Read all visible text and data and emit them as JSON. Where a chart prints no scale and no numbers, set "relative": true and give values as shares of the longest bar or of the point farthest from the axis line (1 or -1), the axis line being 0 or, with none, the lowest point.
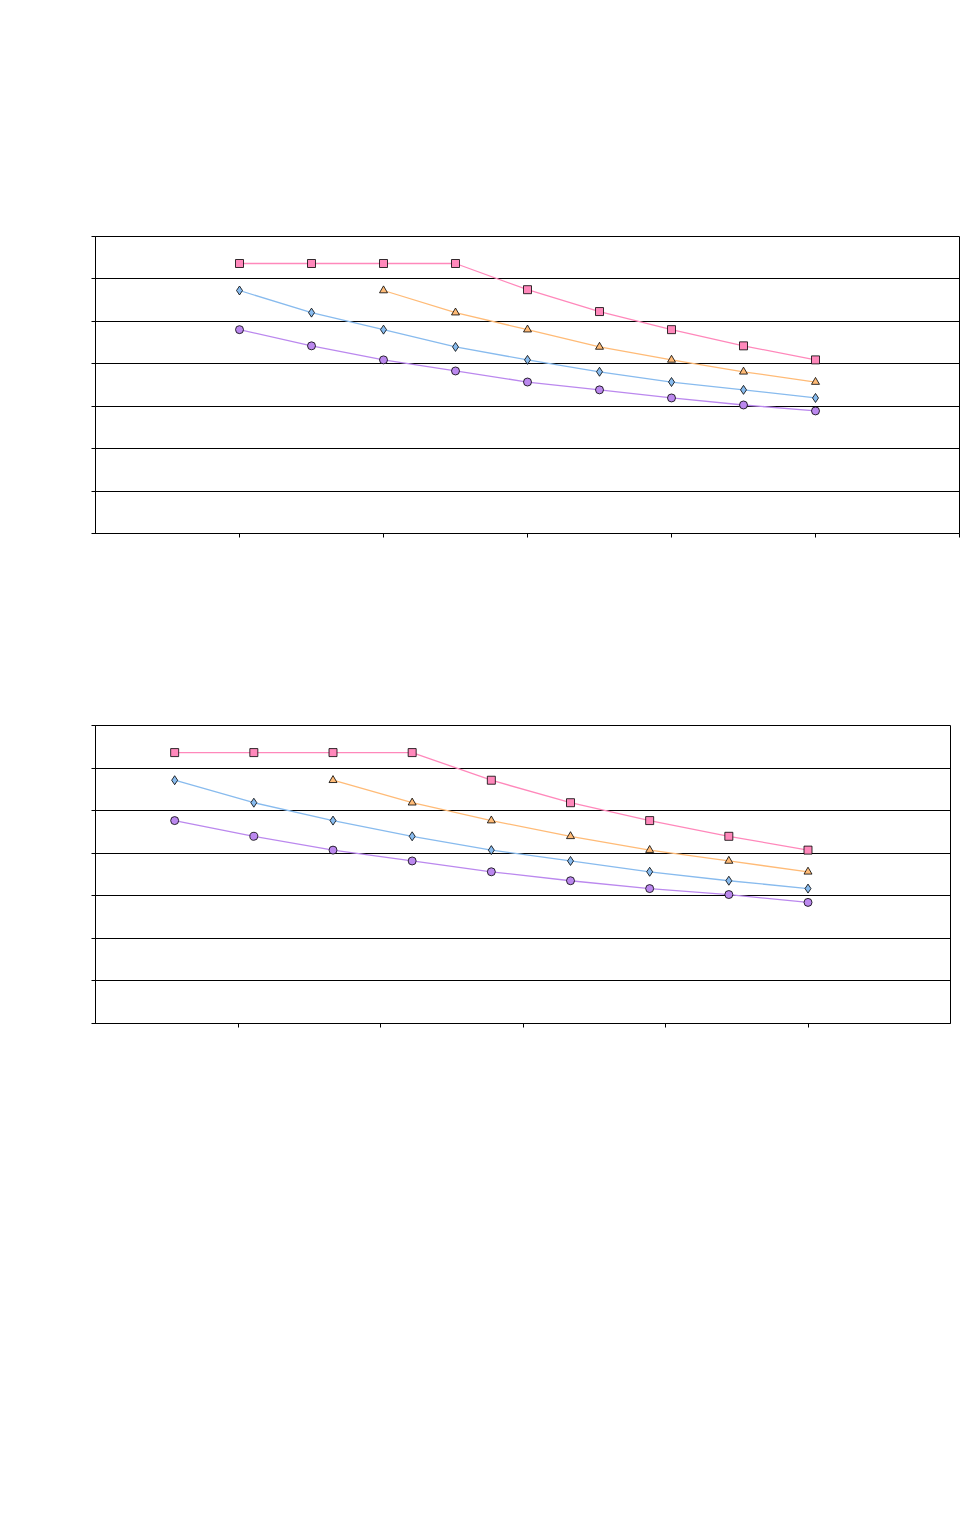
{
  "chart_data": [
    {
      "type": "line",
      "relative": true,
      "categories": [
        null,
        null,
        null,
        null,
        null,
        null,
        null,
        null,
        null
      ],
      "grid": "y",
      "tick_labels": false,
      "series": [
        {
          "color": "#bb88ee",
          "marker": "circle",
          "values": [
            0.755,
            0.695,
            0.643,
            0.602,
            0.561,
            0.532,
            0.502,
            0.476,
            0.454
          ]
        },
        {
          "color": "#88bbee",
          "marker": "diamond",
          "values": [
            0.9,
            0.818,
            0.755,
            0.691,
            0.643,
            0.599,
            0.561,
            0.532,
            0.502
          ]
        },
        {
          "color": "#ffbb77",
          "marker": "triangle",
          "values": [
            null,
            null,
            0.9,
            0.818,
            0.755,
            0.691,
            0.643,
            0.599,
            0.561
          ]
        },
        {
          "color": "#ff88bb",
          "marker": "square",
          "values": [
            1,
            1,
            1,
            1,
            0.903,
            0.822,
            0.755,
            0.695,
            0.643
          ]
        }
      ]
    },
    {
      "type": "line",
      "relative": true,
      "categories": [
        null,
        null,
        null,
        null,
        null,
        null,
        null,
        null,
        null
      ],
      "grid": "y",
      "tick_labels": false,
      "series": [
        {
          "color": "#bb88ee",
          "marker": "circle",
          "values": [
            0.749,
            0.691,
            0.64,
            0.6,
            0.56,
            0.527,
            0.498,
            0.476,
            0.447
          ]
        },
        {
          "color": "#88bbee",
          "marker": "diamond",
          "values": [
            0.898,
            0.815,
            0.749,
            0.691,
            0.64,
            0.6,
            0.56,
            0.527,
            0.498
          ]
        },
        {
          "color": "#ffbb77",
          "marker": "triangle",
          "values": [
            null,
            null,
            0.898,
            0.815,
            0.749,
            0.691,
            0.64,
            0.6,
            0.56
          ]
        },
        {
          "color": "#ff88bb",
          "marker": "square",
          "values": [
            1,
            1,
            1,
            1,
            0.898,
            0.815,
            0.749,
            0.691,
            0.64
          ]
        }
      ]
    }
  ]
}
